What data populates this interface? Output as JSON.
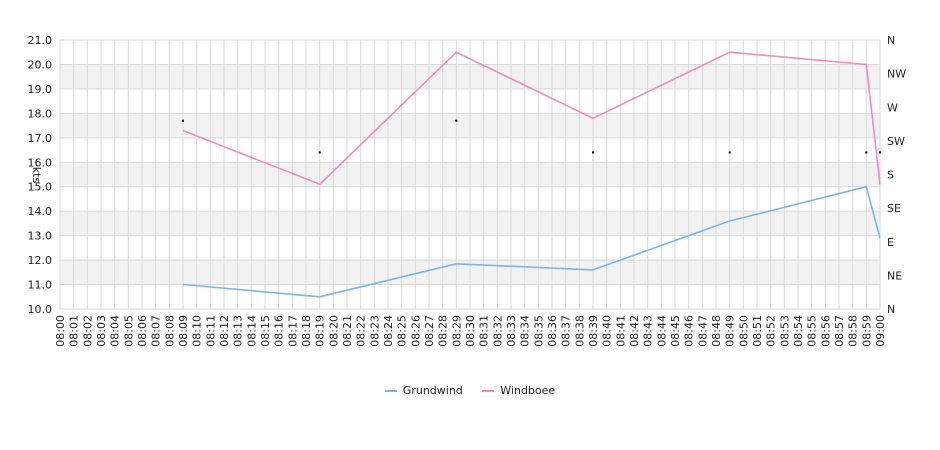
{
  "chart_data": {
    "type": "line",
    "ylabel": "kts",
    "ylim": [
      10,
      21
    ],
    "yticks": [
      "10.0",
      "11.0",
      "12.0",
      "13.0",
      "14.0",
      "15.0",
      "16.0",
      "17.0",
      "18.0",
      "19.0",
      "20.0",
      "21.0"
    ],
    "direction_axis": [
      "N",
      "NE",
      "E",
      "SE",
      "S",
      "SW",
      "W",
      "NW",
      "N"
    ],
    "x_start_minute": 0,
    "x_end_minute": 60,
    "x_ticks": [
      "08:00",
      "08:01",
      "08:02",
      "08:03",
      "08:04",
      "08:05",
      "08:06",
      "08:07",
      "08:08",
      "08:09",
      "08:10",
      "08:11",
      "08:12",
      "08:13",
      "08:14",
      "08:15",
      "08:16",
      "08:17",
      "08:18",
      "08:19",
      "08:20",
      "08:21",
      "08:22",
      "08:23",
      "08:24",
      "08:25",
      "08:26",
      "08:27",
      "08:28",
      "08:29",
      "08:30",
      "08:31",
      "08:32",
      "08:33",
      "08:34",
      "08:35",
      "08:36",
      "08:37",
      "08:38",
      "08:39",
      "08:40",
      "08:41",
      "08:42",
      "08:43",
      "08:44",
      "08:45",
      "08:46",
      "08:47",
      "08:48",
      "08:49",
      "08:50",
      "08:51",
      "08:52",
      "08:53",
      "08:54",
      "08:55",
      "08:56",
      "08:57",
      "08:58",
      "08:59",
      "09:00"
    ],
    "series": [
      {
        "name": "Grundwind",
        "color": "#7cb5ec",
        "x": [
          9,
          19,
          29,
          39,
          49,
          59,
          60
        ],
        "values": [
          11.0,
          10.5,
          11.85,
          11.6,
          13.6,
          15.0,
          12.9
        ]
      },
      {
        "name": "Windboee",
        "color": "#f28cbb",
        "x": [
          9,
          19,
          29,
          39,
          49,
          59,
          60
        ],
        "values": [
          17.3,
          15.1,
          20.5,
          17.8,
          20.5,
          20.0,
          15.1
        ]
      }
    ],
    "direction_points": {
      "x": [
        9,
        19,
        29,
        39,
        49,
        59,
        60
      ],
      "values": [
        17.7,
        16.4,
        17.7,
        16.4,
        16.4,
        16.4,
        16.4
      ]
    },
    "grid": true,
    "legend_position": "bottom"
  }
}
